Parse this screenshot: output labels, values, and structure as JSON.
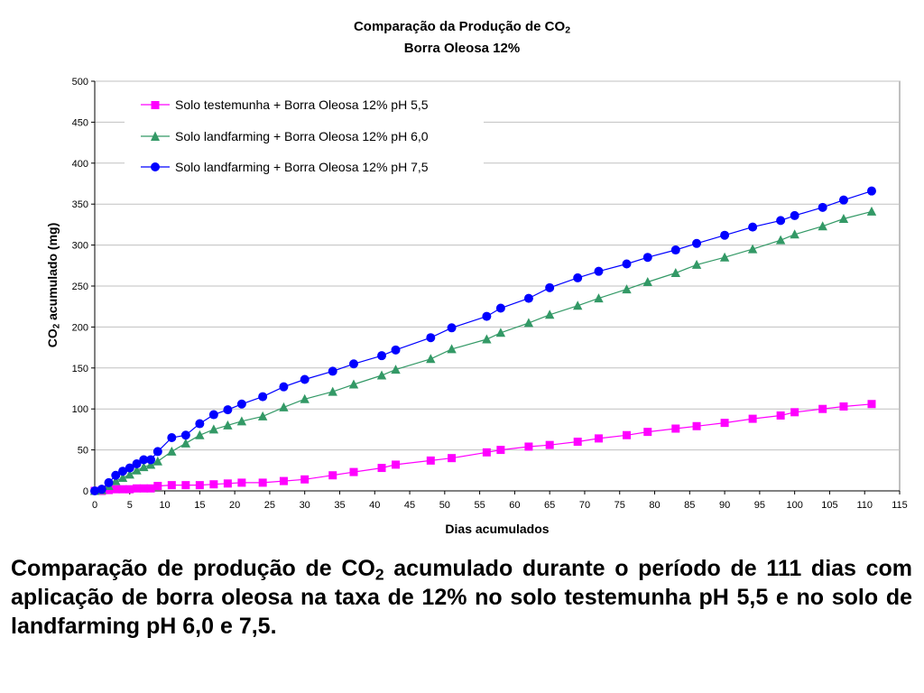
{
  "chart_data": {
    "type": "line",
    "title": "Comparação da Produção de CO",
    "title_sub": "2",
    "subtitle": "Borra Oleosa 12%",
    "xlabel": "Dias acumulados",
    "ylabel_prefix": "CO",
    "ylabel_sub": "2",
    "ylabel_rest": " acumulado (mg)",
    "xlim": [
      0,
      115
    ],
    "ylim": [
      0,
      500
    ],
    "xticks": [
      0,
      5,
      10,
      15,
      20,
      25,
      30,
      35,
      40,
      45,
      50,
      55,
      60,
      65,
      70,
      75,
      80,
      85,
      90,
      95,
      100,
      105,
      110,
      115
    ],
    "yticks": [
      0,
      50,
      100,
      150,
      200,
      250,
      300,
      350,
      400,
      450,
      500
    ],
    "grid": "horizontal",
    "legend_position": "top-left",
    "series": [
      {
        "name": "Solo testemunha + Borra Oleosa 12% pH 5,5",
        "color": "#ff00ff",
        "marker": "square",
        "x": [
          0,
          1,
          2,
          3,
          4,
          5,
          6,
          7,
          8,
          9,
          11,
          13,
          15,
          17,
          19,
          21,
          24,
          27,
          30,
          34,
          37,
          41,
          43,
          48,
          51,
          56,
          58,
          62,
          65,
          69,
          72,
          76,
          79,
          83,
          86,
          90,
          94,
          98,
          100,
          104,
          107,
          111
        ],
        "y": [
          0,
          0,
          1,
          2,
          2,
          2,
          3,
          3,
          3,
          6,
          7,
          7,
          7,
          8,
          9,
          10,
          10,
          12,
          14,
          19,
          23,
          28,
          32,
          37,
          40,
          47,
          50,
          54,
          56,
          60,
          64,
          68,
          72,
          76,
          79,
          83,
          88,
          92,
          96,
          100,
          103,
          106
        ]
      },
      {
        "name": "Solo landfarming + Borra Oleosa 12% pH 6,0",
        "color": "#339966",
        "marker": "triangle",
        "x": [
          0,
          1,
          2,
          3,
          4,
          5,
          6,
          7,
          8,
          9,
          11,
          13,
          15,
          17,
          19,
          21,
          24,
          27,
          30,
          34,
          37,
          41,
          43,
          48,
          51,
          56,
          58,
          62,
          65,
          69,
          72,
          76,
          79,
          83,
          86,
          90,
          94,
          98,
          100,
          104,
          107,
          111
        ],
        "y": [
          0,
          1,
          6,
          12,
          16,
          20,
          25,
          29,
          32,
          36,
          48,
          58,
          68,
          75,
          80,
          85,
          91,
          102,
          112,
          121,
          130,
          141,
          148,
          161,
          173,
          185,
          193,
          205,
          215,
          226,
          235,
          246,
          255,
          266,
          276,
          285,
          295,
          306,
          313,
          323,
          332,
          341
        ]
      },
      {
        "name": "Solo landfarming + Borra Oleosa 12% pH 7,5",
        "color": "#0000ff",
        "marker": "circle",
        "x": [
          0,
          1,
          2,
          3,
          4,
          5,
          6,
          7,
          8,
          9,
          11,
          13,
          15,
          17,
          19,
          21,
          24,
          27,
          30,
          34,
          37,
          41,
          43,
          48,
          51,
          56,
          58,
          62,
          65,
          69,
          72,
          76,
          79,
          83,
          86,
          90,
          94,
          98,
          100,
          104,
          107,
          111
        ],
        "y": [
          0,
          2,
          10,
          19,
          24,
          28,
          33,
          38,
          38,
          48,
          65,
          68,
          82,
          93,
          99,
          106,
          115,
          127,
          136,
          146,
          155,
          165,
          172,
          187,
          199,
          213,
          223,
          235,
          248,
          260,
          268,
          277,
          285,
          294,
          302,
          312,
          322,
          330,
          336,
          346,
          355,
          366
        ]
      }
    ]
  },
  "caption": {
    "part1": "Comparação de produção de CO",
    "sub": "2",
    "part2": " acumulado durante o período de 111 dias com aplicação de borra oleosa na taxa de 12% no solo testemunha pH 5,5 e no solo de landfarming pH 6,0 e 7,5."
  }
}
